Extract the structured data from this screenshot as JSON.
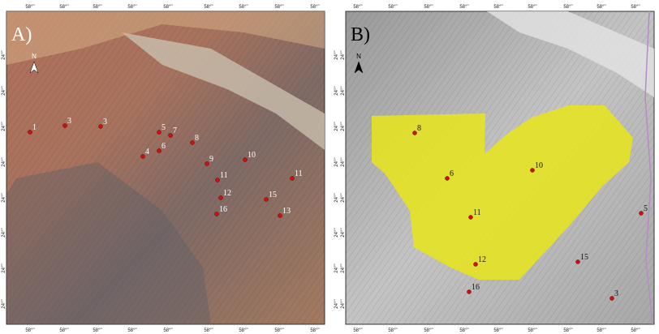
{
  "panels": [
    {
      "label": "A)",
      "north": "N",
      "x_ticks": [
        "58°''",
        "58°''",
        "58°''",
        "58°''",
        "58°''",
        "58°''",
        "58°''",
        "58°''",
        "58°''"
      ],
      "y_ticks": [
        "24°''",
        "24°''",
        "24°''",
        "24°''",
        "24°''",
        "24°''",
        "24°''",
        "24°''"
      ],
      "points": [
        {
          "label": "1"
        },
        {
          "label": "3"
        },
        {
          "label": "3"
        },
        {
          "label": "5"
        },
        {
          "label": "7"
        },
        {
          "label": "8"
        },
        {
          "label": "4"
        },
        {
          "label": "6"
        },
        {
          "label": "9"
        },
        {
          "label": "10"
        },
        {
          "label": "11"
        },
        {
          "label": "11"
        },
        {
          "label": "12"
        },
        {
          "label": "15"
        },
        {
          "label": "16"
        },
        {
          "label": "13"
        }
      ]
    },
    {
      "label": "B)",
      "north": "N",
      "x_ticks": [
        "58°''",
        "58°''",
        "58°''",
        "58°''",
        "58°''",
        "58°''",
        "58°''",
        "58°''",
        "58°''"
      ],
      "y_ticks": [
        "24°''",
        "24°''",
        "24°''",
        "24°''",
        "24°''",
        "24°''",
        "24°''",
        "24°''"
      ],
      "points": [
        {
          "label": "8"
        },
        {
          "label": "6"
        },
        {
          "label": "10"
        },
        {
          "label": "11"
        },
        {
          "label": "12"
        },
        {
          "label": "15"
        },
        {
          "label": "16"
        },
        {
          "label": "3"
        },
        {
          "label": "5"
        }
      ]
    }
  ]
}
